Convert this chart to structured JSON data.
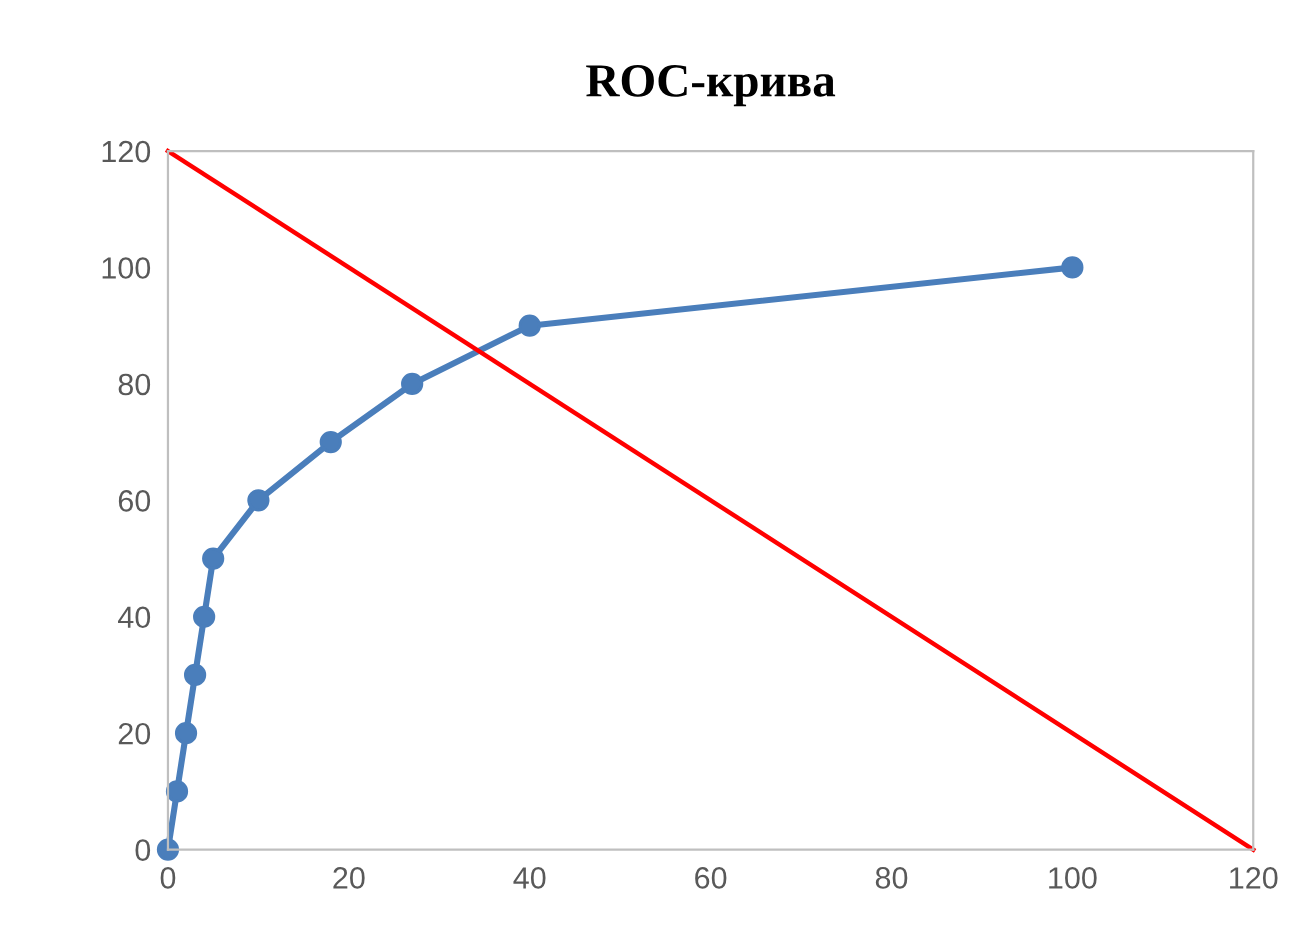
{
  "chart_data": {
    "type": "line",
    "title": "ROC-крива",
    "series": [
      {
        "color": "#4a7ebb",
        "marker": "circle",
        "x": [
          0,
          1,
          2,
          3,
          4,
          5,
          10,
          18,
          27,
          40,
          100
        ],
        "values": [
          0,
          10,
          20,
          30,
          40,
          50,
          60,
          70,
          80,
          90,
          100
        ]
      },
      {
        "color": "#ff0000",
        "marker": "none",
        "x": [
          0,
          120
        ],
        "values": [
          120,
          0
        ]
      }
    ],
    "xlim": [
      0,
      120
    ],
    "xticks": [
      0,
      20,
      40,
      60,
      80,
      100,
      120
    ],
    "ylim": [
      0,
      120
    ],
    "yticks": [
      0,
      20,
      40,
      60,
      80,
      100,
      120
    ],
    "grid": false,
    "legend": false
  }
}
